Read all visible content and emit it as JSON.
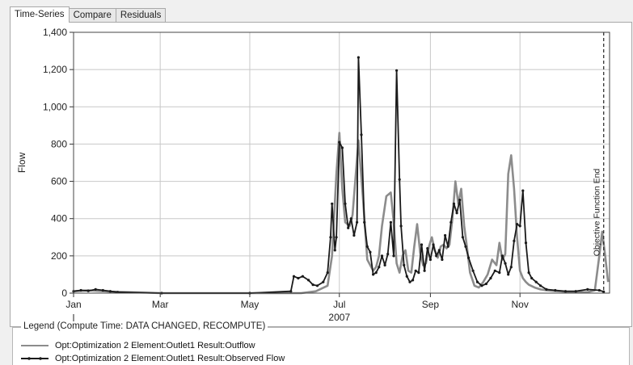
{
  "tabs": [
    {
      "label": "Time-Series",
      "active": true
    },
    {
      "label": "Compare",
      "active": false
    },
    {
      "label": "Residuals",
      "active": false
    }
  ],
  "legend": {
    "title": "Legend (Compute Time: DATA CHANGED, RECOMPUTE)",
    "items": [
      {
        "label": "Opt:Optimization 2 Element:Outlet1 Result:Outflow",
        "color": "#8c8c8c",
        "marker": "none"
      },
      {
        "label": "Opt:Optimization 2 Element:Outlet1 Result:Observed Flow",
        "color": "#1a1a1a",
        "marker": "dot"
      }
    ]
  },
  "chart_data": {
    "type": "line",
    "ylabel": "Flow",
    "xlabel": "2007",
    "ylim": [
      0,
      1400
    ],
    "xlim_days": [
      0,
      365
    ],
    "y_ticks": [
      {
        "value": 0,
        "label": "0"
      },
      {
        "value": 200,
        "label": "200"
      },
      {
        "value": 400,
        "label": "400"
      },
      {
        "value": 600,
        "label": "600"
      },
      {
        "value": 800,
        "label": "800"
      },
      {
        "value": 1000,
        "label": "1,000"
      },
      {
        "value": 1200,
        "label": "1,200"
      },
      {
        "value": 1400,
        "label": "1,400"
      }
    ],
    "x_ticks": [
      {
        "day": 0,
        "label": "Jan"
      },
      {
        "day": 59,
        "label": "Mar"
      },
      {
        "day": 120,
        "label": "May"
      },
      {
        "day": 181,
        "label": "Jul"
      },
      {
        "day": 243,
        "label": "Sep"
      },
      {
        "day": 304,
        "label": "Nov"
      }
    ],
    "grid": true,
    "annotation": {
      "label": "Objective Function End",
      "day": 361
    },
    "series": [
      {
        "name": "Opt:Optimization 2 Element:Outlet1 Result:Outflow",
        "color": "#8c8c8c",
        "x": [
          0,
          10,
          25,
          60,
          120,
          145,
          155,
          165,
          173,
          176,
          179,
          181,
          183,
          185,
          188,
          190,
          194,
          197,
          200,
          204,
          206,
          208,
          210,
          213,
          216,
          218,
          220,
          222,
          224,
          226,
          228,
          230,
          232,
          234,
          236,
          238,
          240,
          242,
          244,
          246,
          248,
          250,
          252,
          254,
          256,
          258,
          260,
          262,
          264,
          266,
          268,
          270,
          273,
          276,
          279,
          282,
          285,
          288,
          290,
          292,
          294,
          296,
          298,
          300,
          302,
          304,
          306,
          308,
          310,
          314,
          318,
          322,
          330,
          340,
          350,
          355,
          358,
          360,
          362,
          364
        ],
        "y": [
          10,
          15,
          8,
          0,
          0,
          0,
          0,
          10,
          40,
          200,
          640,
          860,
          560,
          380,
          360,
          420,
          820,
          520,
          180,
          120,
          140,
          200,
          360,
          520,
          540,
          380,
          160,
          110,
          200,
          230,
          120,
          110,
          250,
          370,
          220,
          150,
          160,
          250,
          300,
          230,
          190,
          250,
          260,
          240,
          260,
          400,
          600,
          480,
          560,
          360,
          240,
          110,
          40,
          30,
          60,
          100,
          180,
          150,
          270,
          180,
          210,
          640,
          740,
          560,
          300,
          120,
          80,
          60,
          45,
          30,
          20,
          15,
          10,
          5,
          5,
          15,
          200,
          330,
          200,
          60
        ]
      },
      {
        "name": "Opt:Optimization 2 Element:Outlet1 Result:Observed Flow",
        "color": "#1a1a1a",
        "x": [
          0,
          5,
          10,
          15,
          20,
          25,
          30,
          60,
          120,
          148,
          150,
          153,
          156,
          160,
          163,
          166,
          170,
          173,
          175,
          176,
          178,
          179,
          181,
          183,
          185,
          187,
          189,
          191,
          193,
          194,
          196,
          198,
          200,
          202,
          204,
          206,
          208,
          210,
          212,
          214,
          216,
          218,
          220,
          222,
          223,
          225,
          227,
          229,
          231,
          233,
          235,
          237,
          239,
          241,
          243,
          245,
          247,
          249,
          251,
          253,
          255,
          257,
          259,
          261,
          263,
          265,
          267,
          269,
          272,
          275,
          278,
          281,
          284,
          287,
          290,
          292,
          294,
          296,
          298,
          300,
          302,
          304,
          306,
          308,
          310,
          312,
          315,
          318,
          322,
          328,
          335,
          342,
          350,
          358,
          361
        ],
        "y": [
          10,
          15,
          12,
          20,
          15,
          10,
          5,
          0,
          0,
          10,
          90,
          80,
          90,
          70,
          45,
          40,
          60,
          110,
          300,
          480,
          230,
          300,
          810,
          780,
          480,
          350,
          400,
          310,
          380,
          1265,
          850,
          380,
          250,
          220,
          100,
          110,
          140,
          200,
          150,
          210,
          380,
          200,
          1195,
          610,
          360,
          150,
          90,
          60,
          70,
          120,
          110,
          260,
          120,
          240,
          180,
          260,
          200,
          230,
          180,
          310,
          250,
          380,
          480,
          430,
          500,
          300,
          250,
          190,
          120,
          60,
          40,
          50,
          80,
          120,
          110,
          200,
          160,
          100,
          140,
          280,
          370,
          360,
          550,
          270,
          110,
          80,
          60,
          40,
          20,
          15,
          10,
          10,
          20,
          15,
          8
        ]
      }
    ]
  }
}
